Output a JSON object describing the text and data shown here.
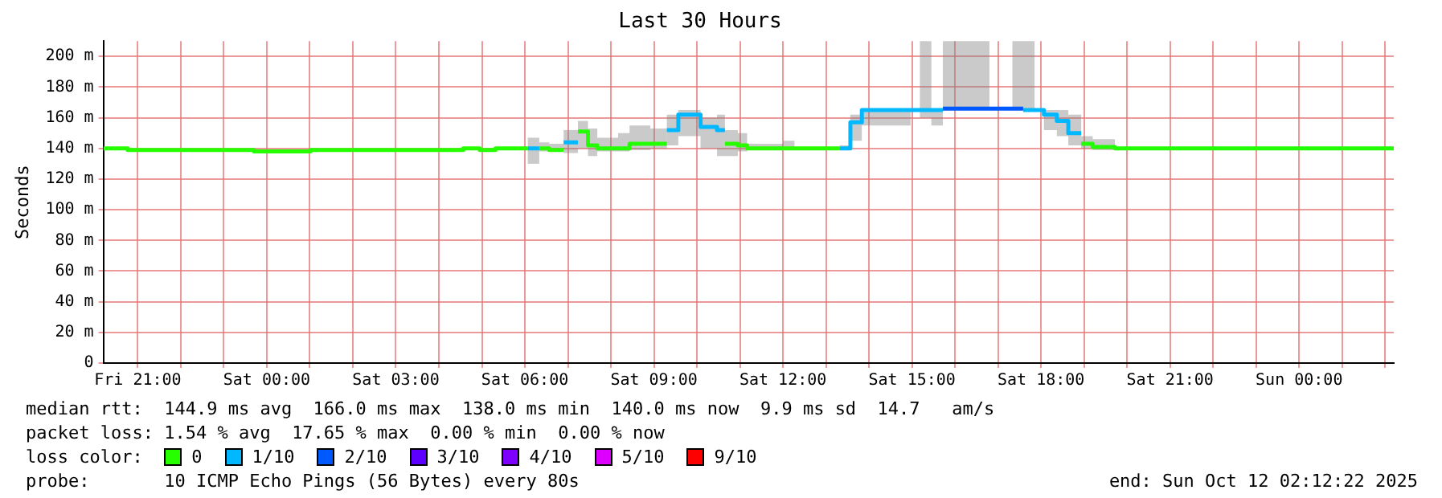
{
  "chart_data": {
    "type": "step",
    "title": "Last 30 Hours",
    "ylabel": "Seconds",
    "legend_title": "loss color:",
    "legend": "bottom",
    "grid": true,
    "xlim": [
      "2025-10-10T20:12",
      "2025-10-12T02:12"
    ],
    "xticks": [
      {
        "value": "2025-10-10T21:00",
        "label": "Fri 21:00"
      },
      {
        "value": "2025-10-10T22:00",
        "label": null
      },
      {
        "value": "2025-10-10T23:00",
        "label": null
      },
      {
        "value": "2025-10-11T00:00",
        "label": "Sat 00:00"
      },
      {
        "value": "2025-10-11T01:00",
        "label": null
      },
      {
        "value": "2025-10-11T02:00",
        "label": null
      },
      {
        "value": "2025-10-11T03:00",
        "label": "Sat 03:00"
      },
      {
        "value": "2025-10-11T04:00",
        "label": null
      },
      {
        "value": "2025-10-11T05:00",
        "label": null
      },
      {
        "value": "2025-10-11T06:00",
        "label": "Sat 06:00"
      },
      {
        "value": "2025-10-11T07:00",
        "label": null
      },
      {
        "value": "2025-10-11T08:00",
        "label": null
      },
      {
        "value": "2025-10-11T09:00",
        "label": "Sat 09:00"
      },
      {
        "value": "2025-10-11T10:00",
        "label": null
      },
      {
        "value": "2025-10-11T11:00",
        "label": null
      },
      {
        "value": "2025-10-11T12:00",
        "label": "Sat 12:00"
      },
      {
        "value": "2025-10-11T13:00",
        "label": null
      },
      {
        "value": "2025-10-11T14:00",
        "label": null
      },
      {
        "value": "2025-10-11T15:00",
        "label": "Sat 15:00"
      },
      {
        "value": "2025-10-11T16:00",
        "label": null
      },
      {
        "value": "2025-10-11T17:00",
        "label": null
      },
      {
        "value": "2025-10-11T18:00",
        "label": "Sat 18:00"
      },
      {
        "value": "2025-10-11T19:00",
        "label": null
      },
      {
        "value": "2025-10-11T20:00",
        "label": null
      },
      {
        "value": "2025-10-11T21:00",
        "label": "Sat 21:00"
      },
      {
        "value": "2025-10-11T22:00",
        "label": null
      },
      {
        "value": "2025-10-11T23:00",
        "label": null
      },
      {
        "value": "2025-10-12T00:00",
        "label": "Sun 00:00"
      },
      {
        "value": "2025-10-12T01:00",
        "label": null
      },
      {
        "value": "2025-10-12T02:00",
        "label": null
      }
    ],
    "ylim": [
      0,
      210
    ],
    "yticks": [
      0,
      {
        "value": 20,
        "label": "20 m"
      },
      {
        "value": 40,
        "label": "40 m"
      },
      {
        "value": 60,
        "label": "60 m"
      },
      {
        "value": 80,
        "label": "80 m"
      },
      {
        "value": 100,
        "label": "100 m"
      },
      {
        "value": 120,
        "label": "120 m"
      },
      {
        "value": 140,
        "label": "140 m"
      },
      {
        "value": 160,
        "label": "160 m"
      },
      {
        "value": 180,
        "label": "180 m"
      },
      {
        "value": 200,
        "label": "200 m"
      }
    ],
    "series": [
      {
        "name": "0",
        "color": "#26ff00",
        "x": [
          "2025-10-10T20:12",
          "2025-10-10T20:46",
          "2025-10-10T20:46",
          "2025-10-10T23:42",
          "2025-10-10T23:42",
          "2025-10-11T01:01",
          "2025-10-11T01:01",
          "2025-10-11T04:34",
          "2025-10-11T04:34",
          "2025-10-11T04:57",
          "2025-10-11T04:57",
          "2025-10-11T05:19",
          "2025-10-11T05:19",
          "2025-10-11T06:04"
        ],
        "values": [
          140,
          140,
          139,
          139,
          138,
          138,
          139,
          139,
          140,
          140,
          139,
          139,
          140,
          140
        ],
        "lower": [
          139,
          139,
          138,
          138,
          137,
          137,
          138,
          138,
          139,
          139,
          138,
          138,
          139,
          139
        ],
        "upper": [
          140,
          140,
          139,
          139,
          138,
          138,
          139,
          139,
          140,
          140,
          139,
          139,
          140,
          140
        ]
      },
      {
        "name": "1/10",
        "color": "#00b8ff",
        "x": [
          "2025-10-11T06:04",
          "2025-10-11T06:20"
        ],
        "values": [
          140,
          140
        ],
        "lower": [
          130,
          130
        ],
        "upper": [
          147,
          147
        ]
      },
      {
        "color": "#28fd02",
        "x": [
          "2025-10-11T06:20",
          "2025-10-11T06:34",
          "2025-10-11T06:34",
          "2025-10-11T06:54"
        ],
        "values": [
          140,
          140,
          139,
          139
        ],
        "lower": [
          138,
          138,
          138,
          138
        ],
        "upper": [
          144,
          144,
          143,
          143
        ]
      },
      {
        "color": "#00b8ff",
        "x": [
          "2025-10-11T06:54",
          "2025-10-11T07:14"
        ],
        "values": [
          144,
          144
        ],
        "lower": [
          137,
          137
        ],
        "upper": [
          152,
          152
        ]
      },
      {
        "color": "#24fe04",
        "x": [
          "2025-10-11T07:14",
          "2025-10-11T07:28",
          "2025-10-11T07:28",
          "2025-10-11T07:41",
          "2025-10-11T07:41",
          "2025-10-11T08:10",
          "2025-10-11T08:10",
          "2025-10-11T08:26",
          "2025-10-11T08:26",
          "2025-10-11T08:55",
          "2025-10-11T08:55",
          "2025-10-11T09:18"
        ],
        "values": [
          151,
          151,
          142,
          142,
          140,
          140,
          140,
          140,
          143,
          143,
          143,
          143
        ],
        "lower": [
          140,
          140,
          135,
          135,
          138,
          138,
          138,
          138,
          139,
          139,
          140,
          140
        ],
        "upper": [
          158,
          158,
          153,
          153,
          147,
          147,
          150,
          150,
          155,
          155,
          153,
          153
        ]
      },
      {
        "color": "#00b8ff",
        "x": [
          "2025-10-11T09:18",
          "2025-10-11T09:34",
          "2025-10-11T09:34",
          "2025-10-11T10:05",
          "2025-10-11T10:05",
          "2025-10-11T10:28",
          "2025-10-11T10:28",
          "2025-10-11T10:39"
        ],
        "values": [
          152,
          152,
          162,
          162,
          154,
          154,
          152,
          152
        ],
        "lower": [
          142,
          142,
          148,
          148,
          140,
          140,
          135,
          135
        ],
        "upper": [
          162,
          162,
          165,
          165,
          160,
          160,
          162,
          162
        ]
      },
      {
        "color": "#2afc00",
        "x": [
          "2025-10-11T10:39",
          "2025-10-11T10:57",
          "2025-10-11T10:57",
          "2025-10-11T11:10",
          "2025-10-11T11:10",
          "2025-10-11T12:00",
          "2025-10-11T12:00",
          "2025-10-11T12:16",
          "2025-10-11T12:16",
          "2025-10-11T13:19"
        ],
        "values": [
          143,
          143,
          142,
          142,
          140,
          140,
          140,
          140,
          140,
          140
        ],
        "lower": [
          135,
          135,
          138,
          138,
          139,
          139,
          139,
          139,
          139,
          139
        ],
        "upper": [
          152,
          152,
          150,
          150,
          143,
          143,
          145,
          145,
          141,
          141
        ]
      },
      {
        "color": "#00b8ff",
        "x": [
          "2025-10-11T13:19",
          "2025-10-11T13:34",
          "2025-10-11T13:34",
          "2025-10-11T13:50",
          "2025-10-11T13:50",
          "2025-10-11T14:58",
          "2025-10-11T14:58",
          "2025-10-11T15:11",
          "2025-10-11T15:11",
          "2025-10-11T15:27",
          "2025-10-11T15:27",
          "2025-10-11T15:43"
        ],
        "values": [
          140,
          140,
          157,
          157,
          165,
          165,
          165,
          165,
          165,
          165,
          165,
          165
        ],
        "lower": [
          139,
          139,
          145,
          145,
          155,
          155,
          165,
          165,
          160,
          160,
          155,
          155
        ],
        "upper": [
          142,
          142,
          162,
          162,
          166,
          166,
          166,
          166,
          210,
          210,
          166,
          166
        ]
      },
      {
        "name": "2/10",
        "color": "#0059ff",
        "x": [
          "2025-10-11T15:43",
          "2025-10-11T16:48",
          "2025-10-11T16:48",
          "2025-10-11T17:20",
          "2025-10-11T17:20",
          "2025-10-11T17:35"
        ],
        "values": [
          166,
          166,
          166,
          166,
          166,
          166
        ],
        "lower": [
          166,
          166,
          166,
          166,
          166,
          166
        ],
        "upper": [
          210,
          210,
          166,
          166,
          210,
          210
        ]
      },
      {
        "color": "#00b8ff",
        "x": [
          "2025-10-11T17:35",
          "2025-10-11T17:51",
          "2025-10-11T17:51",
          "2025-10-11T18:04",
          "2025-10-11T18:04",
          "2025-10-11T18:22",
          "2025-10-11T18:22",
          "2025-10-11T18:38",
          "2025-10-11T18:38",
          "2025-10-11T18:56"
        ],
        "values": [
          165,
          165,
          165,
          165,
          162,
          162,
          158,
          158,
          150,
          150
        ],
        "lower": [
          165,
          165,
          164,
          164,
          152,
          152,
          148,
          148,
          142,
          142
        ],
        "upper": [
          210,
          210,
          166,
          166,
          165,
          165,
          165,
          165,
          162,
          162
        ]
      },
      {
        "color": "#22fd06",
        "x": [
          "2025-10-11T18:56",
          "2025-10-11T19:12",
          "2025-10-11T19:12",
          "2025-10-11T19:43",
          "2025-10-11T19:43",
          "2025-10-12T02:12"
        ],
        "values": [
          143,
          143,
          141,
          141,
          140,
          140
        ],
        "lower": [
          140,
          140,
          139,
          139,
          139,
          139
        ],
        "upper": [
          148,
          148,
          146,
          146,
          140,
          140
        ]
      },
      {
        "name": "3/10",
        "color": "#5e00ff"
      },
      {
        "name": "4/10",
        "color": "#7e00ff"
      },
      {
        "name": "5/10",
        "color": "#dd00ff"
      },
      {
        "name": "9/10",
        "color": "#ff0000"
      }
    ],
    "annotations": [
      "median rtt:  144.9 ms avg  166.0 ms max  138.0 ms min  140.0 ms now  9.9 ms sd  14.7   am/s",
      "packet loss: 1.54 % avg  17.65 % max  0.00 % min  0.00 % now",
      "probe:       10 ICMP Echo Pings (56 Bytes) every 80s",
      "end: Sun Oct 12 02:12:22 2025"
    ]
  }
}
